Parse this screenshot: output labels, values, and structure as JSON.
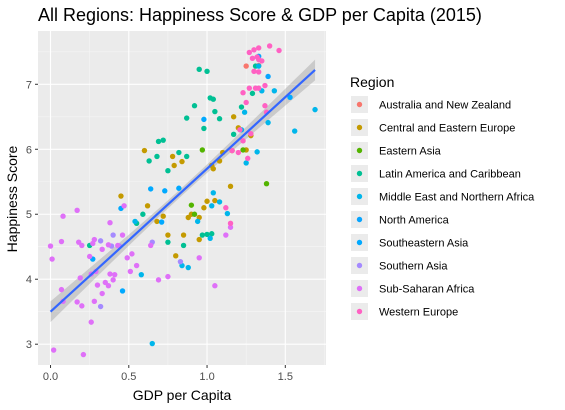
{
  "chart_data": {
    "type": "scatter",
    "title": "All Regions: Happiness Score & GDP per Capita (2015)",
    "xlabel": "GDP per Capita",
    "ylabel": "Happiness Score",
    "xlim": [
      -0.08,
      1.76
    ],
    "ylim": [
      2.68,
      7.82
    ],
    "xticks": [
      0.0,
      0.5,
      1.0,
      1.5
    ],
    "xtick_labels": [
      "0.0",
      "0.5",
      "1.0",
      "1.5"
    ],
    "yticks": [
      3,
      4,
      5,
      6,
      7
    ],
    "ytick_labels": [
      "3",
      "4",
      "5",
      "6",
      "7"
    ],
    "grid": true,
    "legend_title": "Region",
    "legend_position": "right",
    "trend_line": {
      "method": "linear fit with confidence band",
      "x": [
        0.0,
        1.69
      ],
      "y": [
        3.5,
        7.22
      ],
      "ci_halfwidth_edge": 0.16,
      "ci_halfwidth_center": 0.06,
      "color": "#3366FF"
    },
    "series": [
      {
        "name": "Australia and New Zealand",
        "color": "#F8766D",
        "points": [
          [
            1.33,
            7.29
          ],
          [
            1.25,
            7.28
          ]
        ]
      },
      {
        "name": "Central and Eastern Europe",
        "color": "#C49A00",
        "points": [
          [
            0.45,
            5.28
          ],
          [
            0.62,
            5.13
          ],
          [
            0.78,
            5.89
          ],
          [
            0.79,
            5.75
          ],
          [
            0.84,
            5.81
          ],
          [
            0.88,
            4.95
          ],
          [
            0.9,
            5.0
          ],
          [
            0.95,
            4.61
          ],
          [
            0.98,
            5.1
          ],
          [
            1.0,
            5.2
          ],
          [
            1.03,
            5.75
          ],
          [
            1.04,
            5.7
          ],
          [
            1.05,
            5.21
          ],
          [
            1.08,
            5.82
          ],
          [
            1.1,
            5.95
          ],
          [
            1.15,
            5.43
          ],
          [
            1.16,
            5.98
          ],
          [
            1.17,
            6.5
          ],
          [
            1.2,
            6.33
          ],
          [
            1.25,
            5.99
          ],
          [
            1.28,
            6.21
          ],
          [
            0.72,
            4.97
          ],
          [
            0.75,
            4.68
          ],
          [
            0.85,
            4.68
          ],
          [
            0.95,
            4.95
          ],
          [
            0.6,
            5.98
          ],
          [
            0.68,
            4.89
          ],
          [
            0.8,
            4.36
          ]
        ]
      },
      {
        "name": "Eastern Asia",
        "color": "#53B400",
        "points": [
          [
            1.38,
            5.47
          ],
          [
            1.23,
            5.99
          ],
          [
            0.9,
            5.14
          ],
          [
            0.92,
            5.0
          ],
          [
            0.97,
            5.99
          ]
        ]
      },
      {
        "name": "Latin America and Caribbean",
        "color": "#00C094",
        "points": [
          [
            0.25,
            4.52
          ],
          [
            0.55,
            4.86
          ],
          [
            0.59,
            5.0
          ],
          [
            0.63,
            5.82
          ],
          [
            0.68,
            5.89
          ],
          [
            0.69,
            6.12
          ],
          [
            0.72,
            6.14
          ],
          [
            0.75,
            5.67
          ],
          [
            0.82,
            5.95
          ],
          [
            0.87,
            5.89
          ],
          [
            0.87,
            6.48
          ],
          [
            0.92,
            6.67
          ],
          [
            0.95,
            7.23
          ],
          [
            0.98,
            6.32
          ],
          [
            1.02,
            6.79
          ],
          [
            1.04,
            6.77
          ],
          [
            1.05,
            6.58
          ],
          [
            1.08,
            6.47
          ],
          [
            1.17,
            6.23
          ],
          [
            1.22,
            6.65
          ],
          [
            1.29,
            6.86
          ],
          [
            1.31,
            7.28
          ],
          [
            1.0,
            7.2
          ],
          [
            0.85,
            4.52
          ],
          [
            0.75,
            4.57
          ],
          [
            0.97,
            4.68
          ],
          [
            1.0,
            4.69
          ],
          [
            1.03,
            4.7
          ]
        ]
      },
      {
        "name": "Middle East and Northern Africa",
        "color": "#00B6EB",
        "points": [
          [
            0.65,
            3.01
          ],
          [
            0.58,
            4.07
          ],
          [
            0.84,
            4.21
          ],
          [
            1.02,
            4.63
          ],
          [
            1.03,
            5.13
          ],
          [
            1.04,
            5.33
          ],
          [
            1.08,
            5.19
          ],
          [
            1.13,
            5.01
          ],
          [
            1.25,
            5.79
          ],
          [
            1.32,
            5.96
          ],
          [
            1.39,
            6.41
          ],
          [
            1.56,
            6.28
          ],
          [
            1.69,
            6.61
          ],
          [
            1.43,
            6.9
          ],
          [
            1.35,
            6.9
          ],
          [
            1.24,
            6.57
          ],
          [
            1.33,
            7.28
          ],
          [
            0.94,
            4.89
          ],
          [
            0.88,
            4.18
          ],
          [
            0.54,
            4.89
          ],
          [
            1.22,
            6.3
          ]
        ]
      },
      {
        "name": "North America",
        "color": "#06A4FF",
        "points": [
          [
            1.33,
            7.43
          ],
          [
            1.39,
            7.12
          ]
        ]
      },
      {
        "name": "Southeastern Asia",
        "color": "#00A9FF",
        "points": [
          [
            0.27,
            4.31
          ],
          [
            0.46,
            3.82
          ],
          [
            0.64,
            5.39
          ],
          [
            0.73,
            5.36
          ],
          [
            0.82,
            5.4
          ],
          [
            0.98,
            6.46
          ],
          [
            1.53,
            6.8
          ],
          [
            0.71,
            4.88
          ],
          [
            0.45,
            5.09
          ]
        ]
      },
      {
        "name": "Southern Asia",
        "color": "#A58AFF",
        "points": [
          [
            0.32,
            3.58
          ],
          [
            0.39,
            4.51
          ],
          [
            0.4,
            4.68
          ],
          [
            0.44,
            4.51
          ],
          [
            0.65,
            4.57
          ],
          [
            0.83,
            4.27
          ],
          [
            0.32,
            4.59
          ]
        ]
      },
      {
        "name": "Sub-Saharan Africa",
        "color": "#DF70F8",
        "points": [
          [
            0.02,
            2.91
          ],
          [
            0.21,
            2.84
          ],
          [
            0.26,
            3.34
          ],
          [
            0.28,
            3.66
          ],
          [
            0.33,
            3.78
          ],
          [
            0.08,
            3.66
          ],
          [
            0.07,
            3.84
          ],
          [
            0.17,
            3.65
          ],
          [
            0.2,
            3.59
          ],
          [
            0.3,
            3.91
          ],
          [
            0.35,
            3.95
          ],
          [
            0.37,
            3.9
          ],
          [
            0.4,
            3.99
          ],
          [
            0.19,
            4.02
          ],
          [
            0.26,
            4.08
          ],
          [
            0.25,
            4.35
          ],
          [
            0.41,
            4.07
          ],
          [
            0.51,
            4.12
          ],
          [
            0.55,
            4.21
          ],
          [
            0.69,
            3.99
          ],
          [
            0.75,
            4.04
          ],
          [
            0.95,
            4.33
          ],
          [
            1.05,
            3.9
          ],
          [
            0.0,
            4.51
          ],
          [
            0.01,
            4.31
          ],
          [
            0.07,
            4.58
          ],
          [
            0.18,
            4.57
          ],
          [
            0.2,
            4.52
          ],
          [
            0.27,
            4.55
          ],
          [
            0.37,
            4.53
          ],
          [
            0.38,
            4.87
          ],
          [
            0.46,
            4.68
          ],
          [
            0.47,
            5.13
          ],
          [
            0.28,
            4.61
          ],
          [
            0.33,
            4.46
          ],
          [
            0.08,
            4.97
          ],
          [
            0.17,
            5.06
          ],
          [
            0.52,
            4.39
          ],
          [
            0.64,
            4.52
          ],
          [
            1.12,
            4.68
          ],
          [
            1.15,
            4.8
          ],
          [
            0.38,
            4.08
          ],
          [
            0.43,
            4.52
          ],
          [
            0.49,
            4.33
          ],
          [
            0.29,
            4.12
          ]
        ]
      },
      {
        "name": "Western Europe",
        "color": "#FF61C3",
        "points": [
          [
            1.3,
            7.53
          ],
          [
            1.33,
            7.56
          ],
          [
            1.4,
            7.59
          ],
          [
            1.46,
            7.52
          ],
          [
            1.32,
            7.42
          ],
          [
            1.33,
            7.38
          ],
          [
            1.29,
            7.4
          ],
          [
            1.33,
            7.19
          ],
          [
            1.27,
            6.94
          ],
          [
            1.31,
            6.94
          ],
          [
            1.33,
            6.94
          ],
          [
            1.37,
            6.98
          ],
          [
            1.23,
            6.87
          ],
          [
            1.25,
            6.72
          ],
          [
            1.37,
            6.67
          ],
          [
            1.38,
            6.57
          ],
          [
            1.21,
            6.3
          ],
          [
            1.28,
            6.24
          ],
          [
            1.23,
            6.13
          ],
          [
            1.16,
            5.98
          ],
          [
            1.2,
            5.95
          ],
          [
            1.26,
            5.86
          ],
          [
            1.12,
            5.1
          ],
          [
            1.15,
            4.86
          ],
          [
            1.27,
            7.49
          ],
          [
            1.35,
            7.36
          ],
          [
            1.3,
            7.2
          ]
        ]
      }
    ]
  }
}
